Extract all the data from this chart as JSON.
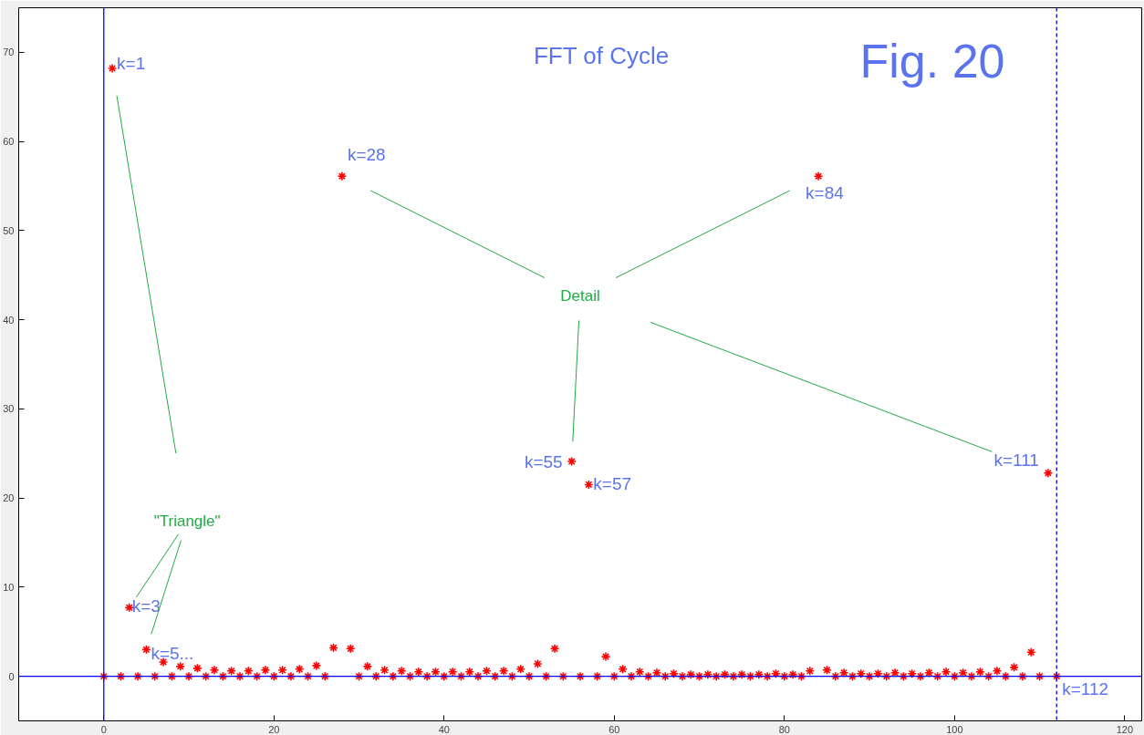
{
  "chart_data": {
    "type": "scatter",
    "title": "FFT of Cycle",
    "x": [
      0,
      1,
      2,
      3,
      4,
      5,
      6,
      7,
      8,
      9,
      10,
      11,
      12,
      13,
      14,
      15,
      16,
      17,
      18,
      19,
      20,
      21,
      22,
      23,
      24,
      25,
      26,
      27,
      28,
      29,
      30,
      31,
      32,
      33,
      34,
      35,
      36,
      37,
      38,
      39,
      40,
      41,
      42,
      43,
      44,
      45,
      46,
      47,
      48,
      49,
      50,
      51,
      52,
      53,
      54,
      55,
      56,
      57,
      58,
      59,
      60,
      61,
      62,
      63,
      64,
      65,
      66,
      67,
      68,
      69,
      70,
      71,
      72,
      73,
      74,
      75,
      76,
      77,
      78,
      79,
      80,
      81,
      82,
      83,
      84,
      85,
      86,
      87,
      88,
      89,
      90,
      91,
      92,
      93,
      94,
      95,
      96,
      97,
      98,
      99,
      100,
      101,
      102,
      103,
      104,
      105,
      106,
      107,
      108,
      109,
      110,
      111,
      112
    ],
    "series": [
      {
        "color": "#ff0000",
        "values": [
          0,
          68.2,
          0,
          7.7,
          0,
          3.0,
          0,
          1.6,
          0,
          1.1,
          0,
          0.9,
          0,
          0.7,
          0,
          0.6,
          0,
          0.6,
          0,
          0.7,
          0,
          0.7,
          0,
          0.8,
          0,
          1.2,
          0,
          3.2,
          56.1,
          3.1,
          0,
          1.1,
          0,
          0.7,
          0,
          0.6,
          0,
          0.5,
          0,
          0.5,
          0,
          0.5,
          0,
          0.5,
          0,
          0.6,
          0,
          0.6,
          0,
          0.8,
          0,
          1.4,
          0,
          3.1,
          0,
          24.1,
          0,
          21.5,
          0,
          2.2,
          0,
          0.8,
          0,
          0.5,
          0,
          0.4,
          0,
          0.3,
          0,
          0.2,
          0,
          0.2,
          0,
          0.2,
          0,
          0.2,
          0,
          0.2,
          0,
          0.3,
          0,
          0.2,
          0,
          0.6,
          56.1,
          0.7,
          0,
          0.4,
          0,
          0.3,
          0,
          0.3,
          0,
          0.4,
          0,
          0.3,
          0,
          0.4,
          0,
          0.5,
          0,
          0.4,
          0,
          0.5,
          0,
          0.6,
          0,
          1.0,
          0,
          2.7,
          0,
          22.8,
          0
        ]
      }
    ],
    "marker": "cross",
    "xlim": [
      -10,
      122
    ],
    "ylim": [
      -5,
      75
    ],
    "xticks": [
      0,
      20,
      40,
      60,
      80,
      100,
      120
    ],
    "yticks": [
      0,
      10,
      20,
      30,
      40,
      50,
      60,
      70
    ],
    "grid": false,
    "ref_lines": [
      {
        "axis": "x",
        "value": 0,
        "color": "#0000ff",
        "line_style": "solid"
      },
      {
        "axis": "x",
        "value": 112,
        "color": "#0000ff",
        "line_style": "dashed"
      },
      {
        "axis": "y",
        "value": 0,
        "color": "#0000ff",
        "line_style": "solid"
      }
    ],
    "annotations": [
      "Fig. 20",
      "Detail",
      {
        "text": "k=28",
        "x": 28,
        "y": 56.1
      },
      {
        "text": "k=84",
        "x": 84,
        "y": 56.1
      },
      {
        "text": "k=55",
        "x": 55,
        "y": 24.1
      },
      {
        "text": "k=111",
        "x": 111,
        "y": 22.8
      },
      "\"Triangle\"",
      {
        "text": "k=1",
        "x": 1,
        "y": 68.2
      },
      {
        "text": "k=3",
        "x": 3,
        "y": 7.7
      },
      {
        "text": "k=5...",
        "x": 5,
        "y": 3.0
      },
      {
        "text": "k=57",
        "x": 57,
        "y": 21.5
      },
      {
        "text": "k=112",
        "x": 112,
        "y": 0
      }
    ]
  }
}
